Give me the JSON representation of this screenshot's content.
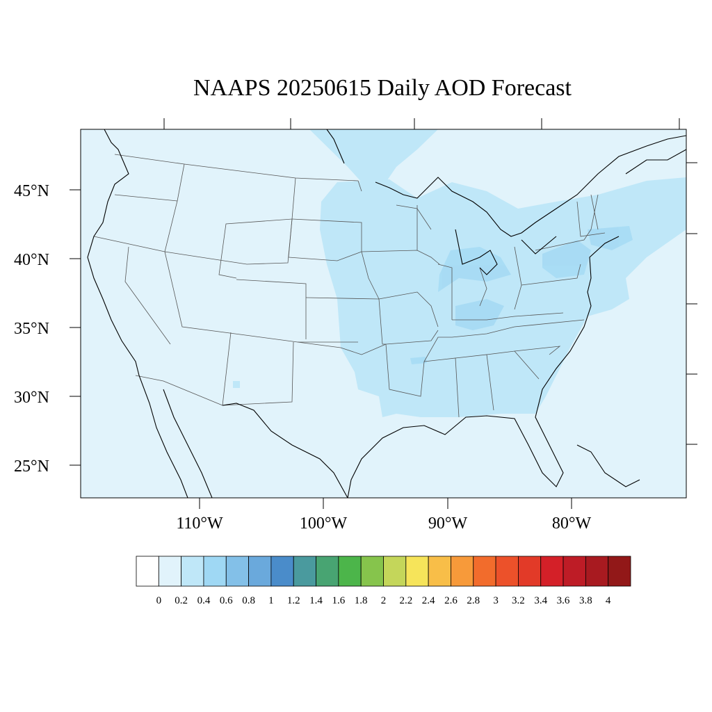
{
  "title": "NAAPS 20250615 Daily AOD Forecast",
  "map": {
    "background_aod_color": "#e1f3fb",
    "state_line_color": "#555555",
    "coast_color": "#000000"
  },
  "axes": {
    "lat_labels": [
      "45°N",
      "40°N",
      "35°N",
      "30°N",
      "25°N"
    ],
    "lon_labels": [
      "110°W",
      "100°W",
      "90°W",
      "80°W"
    ]
  },
  "colorbar": {
    "labels": [
      "0",
      "0.2",
      "0.4",
      "0.6",
      "0.8",
      "1",
      "1.2",
      "1.4",
      "1.6",
      "1.8",
      "2",
      "2.2",
      "2.4",
      "2.6",
      "2.8",
      "3",
      "3.2",
      "3.4",
      "3.6",
      "3.8",
      "4"
    ],
    "colors": [
      "#ffffff",
      "#e1f3fb",
      "#bfe7f8",
      "#9fd8f4",
      "#83c0e8",
      "#6aa9dc",
      "#4a8cca",
      "#4a9a9e",
      "#48a472",
      "#4cb54a",
      "#86c44c",
      "#c4d65a",
      "#f6e45a",
      "#f8be48",
      "#f79a3a",
      "#f26c2c",
      "#ec512a",
      "#e23a28",
      "#d42028",
      "#be1c26",
      "#a81a20",
      "#921818"
    ]
  }
}
